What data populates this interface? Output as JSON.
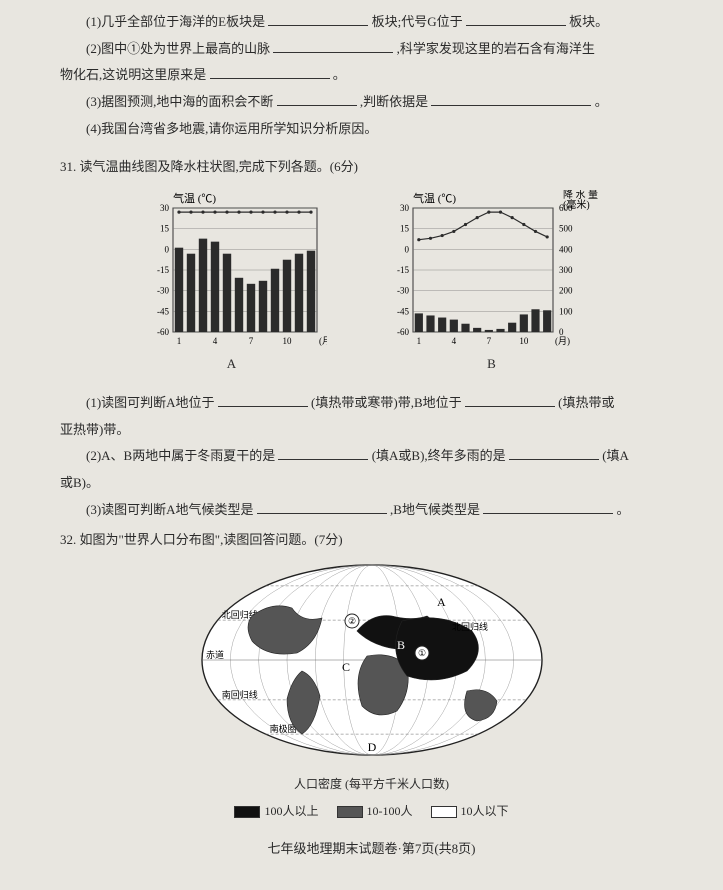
{
  "q30": {
    "p1_a": "(1)几乎全部位于海洋的E板块是",
    "p1_b": "板块;代号G位于",
    "p1_c": "板块。",
    "p2_a": "(2)图中①处为世界上最高的山脉",
    "p2_b": ",科学家发现这里的岩石含有海洋生",
    "p2_c": "物化石,这说明这里原来是",
    "p2_d": "。",
    "p3_a": "(3)据图预测,地中海的面积会不断",
    "p3_b": ",判断依据是",
    "p3_c": "。",
    "p4": "(4)我国台湾省多地震,请你运用所学知识分析原因。"
  },
  "q31": {
    "head": "31. 读气温曲线图及降水柱状图,完成下列各题。(6分)",
    "p1_a": "(1)读图可判断A地位于",
    "p1_b": "(填热带或寒带)带,B地位于",
    "p1_c": "(填热带或",
    "p1_d": "亚热带)带。",
    "p2_a": "(2)A、B两地中属于冬雨夏干的是",
    "p2_b": "(填A或B),终年多雨的是",
    "p2_c": "(填A",
    "p2_d": "或B)。",
    "p3_a": "(3)读图可判断A地气候类型是",
    "p3_b": ",B地气候类型是",
    "p3_c": "。",
    "chartA": {
      "title": "气温 (℃)",
      "ticks": [
        30,
        15,
        0,
        -15,
        -30,
        -45,
        -60
      ],
      "xlabels": [
        "1",
        "4",
        "7",
        "10",
        "(月)"
      ],
      "label": "A",
      "temp": [
        27,
        27,
        27,
        27,
        27,
        27,
        27,
        27,
        27,
        27,
        27,
        27
      ],
      "precip": [
        280,
        260,
        310,
        300,
        260,
        180,
        160,
        170,
        210,
        240,
        260,
        270
      ],
      "bar_color": "#2b2b2b",
      "line_color": "#2b2b2b",
      "grid_color": "#777"
    },
    "chartB": {
      "title_l": "气温 (℃)",
      "title_r": "降 水 量\n(毫米)",
      "ticks_l": [
        30,
        15,
        0,
        -15,
        -30,
        -45,
        -60
      ],
      "ticks_r": [
        600,
        500,
        400,
        300,
        200,
        100,
        0
      ],
      "xlabels": [
        "1",
        "4",
        "7",
        "10",
        "(月)"
      ],
      "label": "B",
      "temp": [
        7,
        8,
        10,
        13,
        18,
        23,
        27,
        27,
        23,
        18,
        13,
        9
      ],
      "precip": [
        90,
        80,
        70,
        60,
        40,
        20,
        10,
        15,
        45,
        85,
        110,
        105
      ],
      "bar_color": "#2b2b2b",
      "line_color": "#2b2b2b",
      "grid_color": "#777"
    }
  },
  "q32": {
    "head": "32. 如图为\"世界人口分布图\",读图回答问题。(7分)",
    "map": {
      "labels": {
        "A": "A",
        "B": "B",
        "C": "C",
        "D": "D",
        "c1": "①",
        "c2": "②"
      },
      "lines": {
        "tropic_n": "北回归线",
        "equator": "赤道",
        "tropic_s": "南回归线",
        "arctic": "",
        "antarctic": "南极圈"
      },
      "caption": "人口密度 (每平方千米人口数)",
      "legend": [
        {
          "fill": "#111",
          "label": "100人以上"
        },
        {
          "fill": "#555",
          "label": "10-100人"
        },
        {
          "fill": "#fff",
          "label": "10人以下"
        }
      ]
    }
  },
  "footer": "七年级地理期末试题卷·第7页(共8页)",
  "style": {
    "bg": "#e8e6e0",
    "text": "#2a2a2a",
    "blank_widths": {
      "s": 70,
      "m": 100,
      "l": 140
    }
  }
}
